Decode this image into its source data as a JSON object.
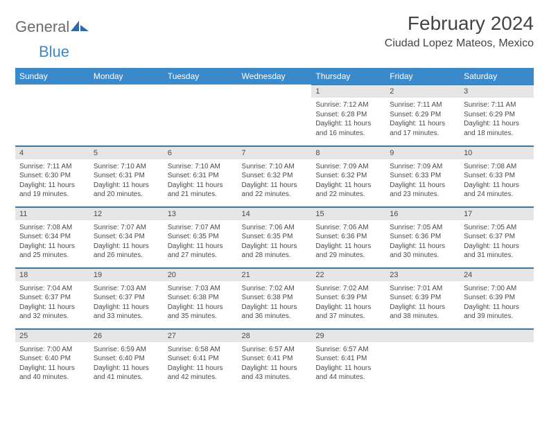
{
  "logo": {
    "general": "General",
    "blue": "Blue"
  },
  "title": "February 2024",
  "location": "Ciudad Lopez Mateos, Mexico",
  "colors": {
    "header_bg": "#3a8acb",
    "header_text": "#ffffff",
    "daynum_bg": "#e6e6e6",
    "rule": "#3a77a5",
    "text": "#494949"
  },
  "weekdays": [
    "Sunday",
    "Monday",
    "Tuesday",
    "Wednesday",
    "Thursday",
    "Friday",
    "Saturday"
  ],
  "weeks": [
    [
      {
        "blank": true
      },
      {
        "blank": true
      },
      {
        "blank": true
      },
      {
        "blank": true
      },
      {
        "day": "1",
        "sunrise": "Sunrise: 7:12 AM",
        "sunset": "Sunset: 6:28 PM",
        "daylight1": "Daylight: 11 hours",
        "daylight2": "and 16 minutes."
      },
      {
        "day": "2",
        "sunrise": "Sunrise: 7:11 AM",
        "sunset": "Sunset: 6:29 PM",
        "daylight1": "Daylight: 11 hours",
        "daylight2": "and 17 minutes."
      },
      {
        "day": "3",
        "sunrise": "Sunrise: 7:11 AM",
        "sunset": "Sunset: 6:29 PM",
        "daylight1": "Daylight: 11 hours",
        "daylight2": "and 18 minutes."
      }
    ],
    [
      {
        "day": "4",
        "sunrise": "Sunrise: 7:11 AM",
        "sunset": "Sunset: 6:30 PM",
        "daylight1": "Daylight: 11 hours",
        "daylight2": "and 19 minutes."
      },
      {
        "day": "5",
        "sunrise": "Sunrise: 7:10 AM",
        "sunset": "Sunset: 6:31 PM",
        "daylight1": "Daylight: 11 hours",
        "daylight2": "and 20 minutes."
      },
      {
        "day": "6",
        "sunrise": "Sunrise: 7:10 AM",
        "sunset": "Sunset: 6:31 PM",
        "daylight1": "Daylight: 11 hours",
        "daylight2": "and 21 minutes."
      },
      {
        "day": "7",
        "sunrise": "Sunrise: 7:10 AM",
        "sunset": "Sunset: 6:32 PM",
        "daylight1": "Daylight: 11 hours",
        "daylight2": "and 22 minutes."
      },
      {
        "day": "8",
        "sunrise": "Sunrise: 7:09 AM",
        "sunset": "Sunset: 6:32 PM",
        "daylight1": "Daylight: 11 hours",
        "daylight2": "and 22 minutes."
      },
      {
        "day": "9",
        "sunrise": "Sunrise: 7:09 AM",
        "sunset": "Sunset: 6:33 PM",
        "daylight1": "Daylight: 11 hours",
        "daylight2": "and 23 minutes."
      },
      {
        "day": "10",
        "sunrise": "Sunrise: 7:08 AM",
        "sunset": "Sunset: 6:33 PM",
        "daylight1": "Daylight: 11 hours",
        "daylight2": "and 24 minutes."
      }
    ],
    [
      {
        "day": "11",
        "sunrise": "Sunrise: 7:08 AM",
        "sunset": "Sunset: 6:34 PM",
        "daylight1": "Daylight: 11 hours",
        "daylight2": "and 25 minutes."
      },
      {
        "day": "12",
        "sunrise": "Sunrise: 7:07 AM",
        "sunset": "Sunset: 6:34 PM",
        "daylight1": "Daylight: 11 hours",
        "daylight2": "and 26 minutes."
      },
      {
        "day": "13",
        "sunrise": "Sunrise: 7:07 AM",
        "sunset": "Sunset: 6:35 PM",
        "daylight1": "Daylight: 11 hours",
        "daylight2": "and 27 minutes."
      },
      {
        "day": "14",
        "sunrise": "Sunrise: 7:06 AM",
        "sunset": "Sunset: 6:35 PM",
        "daylight1": "Daylight: 11 hours",
        "daylight2": "and 28 minutes."
      },
      {
        "day": "15",
        "sunrise": "Sunrise: 7:06 AM",
        "sunset": "Sunset: 6:36 PM",
        "daylight1": "Daylight: 11 hours",
        "daylight2": "and 29 minutes."
      },
      {
        "day": "16",
        "sunrise": "Sunrise: 7:05 AM",
        "sunset": "Sunset: 6:36 PM",
        "daylight1": "Daylight: 11 hours",
        "daylight2": "and 30 minutes."
      },
      {
        "day": "17",
        "sunrise": "Sunrise: 7:05 AM",
        "sunset": "Sunset: 6:37 PM",
        "daylight1": "Daylight: 11 hours",
        "daylight2": "and 31 minutes."
      }
    ],
    [
      {
        "day": "18",
        "sunrise": "Sunrise: 7:04 AM",
        "sunset": "Sunset: 6:37 PM",
        "daylight1": "Daylight: 11 hours",
        "daylight2": "and 32 minutes."
      },
      {
        "day": "19",
        "sunrise": "Sunrise: 7:03 AM",
        "sunset": "Sunset: 6:37 PM",
        "daylight1": "Daylight: 11 hours",
        "daylight2": "and 33 minutes."
      },
      {
        "day": "20",
        "sunrise": "Sunrise: 7:03 AM",
        "sunset": "Sunset: 6:38 PM",
        "daylight1": "Daylight: 11 hours",
        "daylight2": "and 35 minutes."
      },
      {
        "day": "21",
        "sunrise": "Sunrise: 7:02 AM",
        "sunset": "Sunset: 6:38 PM",
        "daylight1": "Daylight: 11 hours",
        "daylight2": "and 36 minutes."
      },
      {
        "day": "22",
        "sunrise": "Sunrise: 7:02 AM",
        "sunset": "Sunset: 6:39 PM",
        "daylight1": "Daylight: 11 hours",
        "daylight2": "and 37 minutes."
      },
      {
        "day": "23",
        "sunrise": "Sunrise: 7:01 AM",
        "sunset": "Sunset: 6:39 PM",
        "daylight1": "Daylight: 11 hours",
        "daylight2": "and 38 minutes."
      },
      {
        "day": "24",
        "sunrise": "Sunrise: 7:00 AM",
        "sunset": "Sunset: 6:39 PM",
        "daylight1": "Daylight: 11 hours",
        "daylight2": "and 39 minutes."
      }
    ],
    [
      {
        "day": "25",
        "sunrise": "Sunrise: 7:00 AM",
        "sunset": "Sunset: 6:40 PM",
        "daylight1": "Daylight: 11 hours",
        "daylight2": "and 40 minutes."
      },
      {
        "day": "26",
        "sunrise": "Sunrise: 6:59 AM",
        "sunset": "Sunset: 6:40 PM",
        "daylight1": "Daylight: 11 hours",
        "daylight2": "and 41 minutes."
      },
      {
        "day": "27",
        "sunrise": "Sunrise: 6:58 AM",
        "sunset": "Sunset: 6:41 PM",
        "daylight1": "Daylight: 11 hours",
        "daylight2": "and 42 minutes."
      },
      {
        "day": "28",
        "sunrise": "Sunrise: 6:57 AM",
        "sunset": "Sunset: 6:41 PM",
        "daylight1": "Daylight: 11 hours",
        "daylight2": "and 43 minutes."
      },
      {
        "day": "29",
        "sunrise": "Sunrise: 6:57 AM",
        "sunset": "Sunset: 6:41 PM",
        "daylight1": "Daylight: 11 hours",
        "daylight2": "and 44 minutes."
      },
      {
        "blank": true,
        "trailing": true
      },
      {
        "blank": true,
        "trailing": true
      }
    ]
  ]
}
